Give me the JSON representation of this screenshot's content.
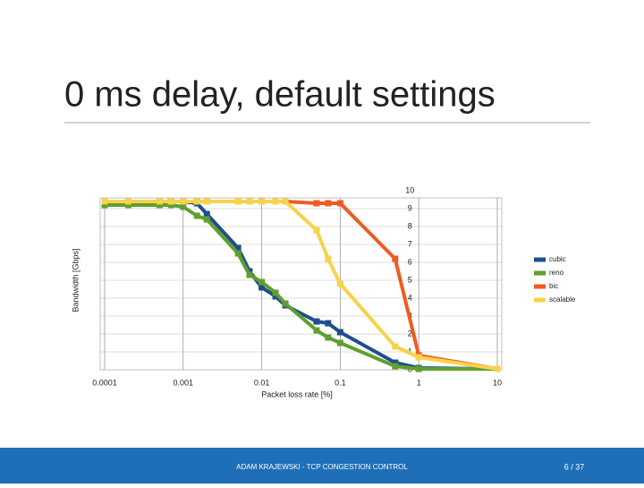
{
  "chart_data": {
    "type": "line",
    "title": "0 ms delay, default settings",
    "x_label": "Packet loss rate [%]",
    "y_label": "Bandwidth [Gbps]",
    "log_x": true,
    "grid": true,
    "legend": "right",
    "x": [
      0.0001,
      0.0002,
      0.0005,
      0.0007,
      0.001,
      0.0015,
      0.002,
      0.005,
      0.007,
      0.01,
      0.015,
      0.02,
      0.05,
      0.07,
      0.1,
      0.5,
      1,
      10
    ],
    "series": [
      {
        "name": "cubic",
        "color": "#1f4e8c",
        "values": [
          9.4,
          9.4,
          9.4,
          9.4,
          9.4,
          9.3,
          8.7,
          6.8,
          5.5,
          4.6,
          4.1,
          3.6,
          2.7,
          2.6,
          2.1,
          0.4,
          0.1,
          0.05
        ]
      },
      {
        "name": "reno",
        "color": "#5f9f2f",
        "values": [
          9.2,
          9.2,
          9.2,
          9.2,
          9.1,
          8.6,
          8.4,
          6.5,
          5.3,
          4.9,
          4.3,
          3.7,
          2.2,
          1.8,
          1.5,
          0.2,
          0.05,
          0.05
        ]
      },
      {
        "name": "bic",
        "color": "#f05a22",
        "values": [
          9.4,
          9.4,
          9.4,
          9.4,
          9.4,
          9.4,
          9.4,
          9.4,
          9.4,
          9.4,
          9.4,
          9.4,
          9.3,
          9.3,
          9.3,
          6.2,
          0.8,
          0.05
        ]
      },
      {
        "name": "scalable",
        "color": "#f7d34a",
        "values": [
          9.4,
          9.4,
          9.4,
          9.4,
          9.4,
          9.4,
          9.4,
          9.4,
          9.4,
          9.4,
          9.4,
          9.4,
          7.8,
          6.2,
          4.8,
          1.3,
          0.7,
          0.05
        ]
      }
    ],
    "xlim": [
      0.0001,
      10
    ],
    "xticks": [
      0.0001,
      0.001,
      0.01,
      0.1,
      1,
      10
    ],
    "ylim": [
      0,
      10
    ],
    "yticks": [
      0,
      1,
      2,
      3,
      4,
      5,
      6,
      7,
      8,
      9,
      10
    ]
  },
  "footer": {
    "text": "ADAM KRAJEWSKI - TCP CONGESTION CONTROL",
    "page": "6 / 37"
  }
}
